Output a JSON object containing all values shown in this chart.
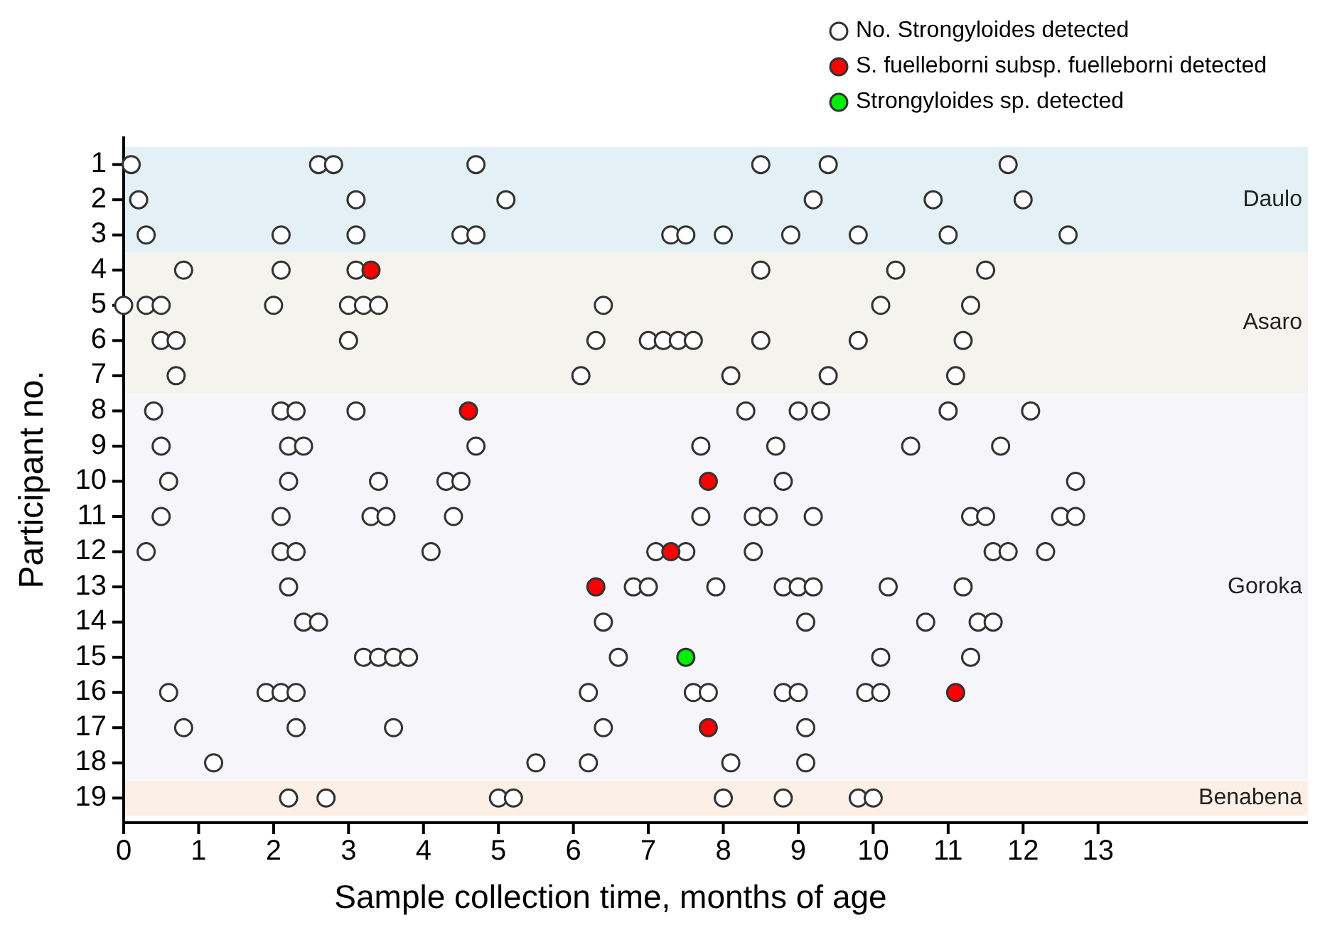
{
  "chart_data": {
    "type": "scatter",
    "xlabel": "Sample collection time, months of age",
    "ylabel": "Participant no.",
    "xlim": [
      0,
      15.8
    ],
    "xticks": [
      0,
      1,
      2,
      3,
      4,
      5,
      6,
      7,
      8,
      9,
      10,
      11,
      12,
      13
    ],
    "ylim": [
      19.7,
      0.2
    ],
    "yticks": [
      1,
      2,
      3,
      4,
      5,
      6,
      7,
      8,
      9,
      10,
      11,
      12,
      13,
      14,
      15,
      16,
      17,
      18,
      19
    ],
    "marker": "circle",
    "legend": "top right",
    "grid": false,
    "bands": [
      {
        "axis": "y",
        "from": 0.5,
        "to": 3.5,
        "label": "Daulo",
        "color": "#e3f1f6"
      },
      {
        "axis": "y",
        "from": 3.5,
        "to": 7.5,
        "label": "Asaro",
        "color": "#f5f3ed"
      },
      {
        "axis": "y",
        "from": 7.5,
        "to": 18.5,
        "label": "Goroka",
        "color": "#f6f6fa"
      },
      {
        "axis": "y",
        "from": 18.5,
        "to": 19.5,
        "label": "Benabena",
        "color": "#fcefe5"
      }
    ],
    "series": [
      {
        "name": "No. Strongyloides detected",
        "color": "#ffffff",
        "x": [
          0.1,
          2.6,
          2.8,
          4.7,
          8.5,
          9.4,
          11.8,
          0.2,
          3.1,
          5.1,
          9.2,
          10.8,
          12.0,
          0.3,
          2.1,
          3.1,
          4.5,
          4.7,
          7.3,
          7.5,
          8.0,
          8.9,
          9.8,
          11.0,
          12.6,
          0.8,
          2.1,
          3.1,
          8.5,
          10.3,
          11.5,
          0.0,
          0.3,
          0.5,
          2.0,
          3.0,
          3.2,
          3.4,
          6.4,
          10.1,
          11.3,
          0.5,
          0.7,
          3.0,
          6.3,
          7.0,
          7.2,
          7.4,
          7.6,
          8.5,
          9.8,
          11.2,
          0.7,
          6.1,
          8.1,
          9.4,
          11.1,
          0.4,
          2.1,
          2.3,
          3.1,
          8.3,
          9.0,
          9.3,
          11.0,
          12.1,
          0.5,
          2.2,
          2.4,
          4.7,
          7.7,
          8.7,
          10.5,
          11.7,
          0.6,
          2.2,
          3.4,
          4.3,
          4.5,
          8.8,
          12.7,
          0.5,
          2.1,
          3.3,
          3.5,
          4.4,
          7.7,
          8.4,
          8.6,
          9.2,
          11.3,
          11.5,
          12.5,
          12.7,
          0.3,
          2.1,
          2.3,
          4.1,
          7.1,
          7.5,
          8.4,
          11.6,
          11.8,
          12.3,
          2.2,
          6.8,
          7.0,
          7.9,
          8.8,
          9.0,
          9.2,
          10.2,
          11.2,
          2.4,
          2.6,
          6.4,
          9.1,
          10.7,
          11.4,
          11.6,
          3.2,
          3.4,
          3.6,
          3.8,
          6.6,
          10.1,
          11.3,
          0.6,
          1.9,
          2.1,
          2.3,
          6.2,
          7.6,
          7.8,
          8.8,
          9.0,
          9.9,
          10.1,
          0.8,
          2.3,
          3.6,
          6.4,
          9.1,
          1.2,
          5.5,
          6.2,
          8.1,
          9.1,
          2.2,
          2.7,
          5.0,
          5.2,
          8.0,
          8.8,
          9.8,
          10.0
        ],
        "values": [
          1,
          1,
          1,
          1,
          1,
          1,
          1,
          2,
          2,
          2,
          2,
          2,
          2,
          3,
          3,
          3,
          3,
          3,
          3,
          3,
          3,
          3,
          3,
          3,
          3,
          4,
          4,
          4,
          4,
          4,
          4,
          5,
          5,
          5,
          5,
          5,
          5,
          5,
          5,
          5,
          5,
          6,
          6,
          6,
          6,
          6,
          6,
          6,
          6,
          6,
          6,
          6,
          7,
          7,
          7,
          7,
          7,
          8,
          8,
          8,
          8,
          8,
          8,
          8,
          8,
          8,
          9,
          9,
          9,
          9,
          9,
          9,
          9,
          9,
          10,
          10,
          10,
          10,
          10,
          10,
          10,
          11,
          11,
          11,
          11,
          11,
          11,
          11,
          11,
          11,
          11,
          11,
          11,
          11,
          12,
          12,
          12,
          12,
          12,
          12,
          12,
          12,
          12,
          12,
          13,
          13,
          13,
          13,
          13,
          13,
          13,
          13,
          13,
          14,
          14,
          14,
          14,
          14,
          14,
          14,
          15,
          15,
          15,
          15,
          15,
          15,
          15,
          16,
          16,
          16,
          16,
          16,
          16,
          16,
          16,
          16,
          16,
          16,
          17,
          17,
          17,
          17,
          17,
          18,
          18,
          18,
          18,
          18,
          19,
          19,
          19,
          19,
          19,
          19,
          19,
          19
        ]
      },
      {
        "name": "S. fuelleborni subsp. fuelleborni detected",
        "color": "#ff0000",
        "x": [
          3.3,
          4.6,
          7.8,
          7.3,
          6.3,
          11.1,
          7.8
        ],
        "values": [
          4,
          8,
          10,
          12,
          13,
          16,
          17
        ]
      },
      {
        "name": "Strongyloides sp. detected",
        "color": "#00ee00",
        "x": [
          7.5
        ],
        "values": [
          15
        ]
      }
    ]
  }
}
